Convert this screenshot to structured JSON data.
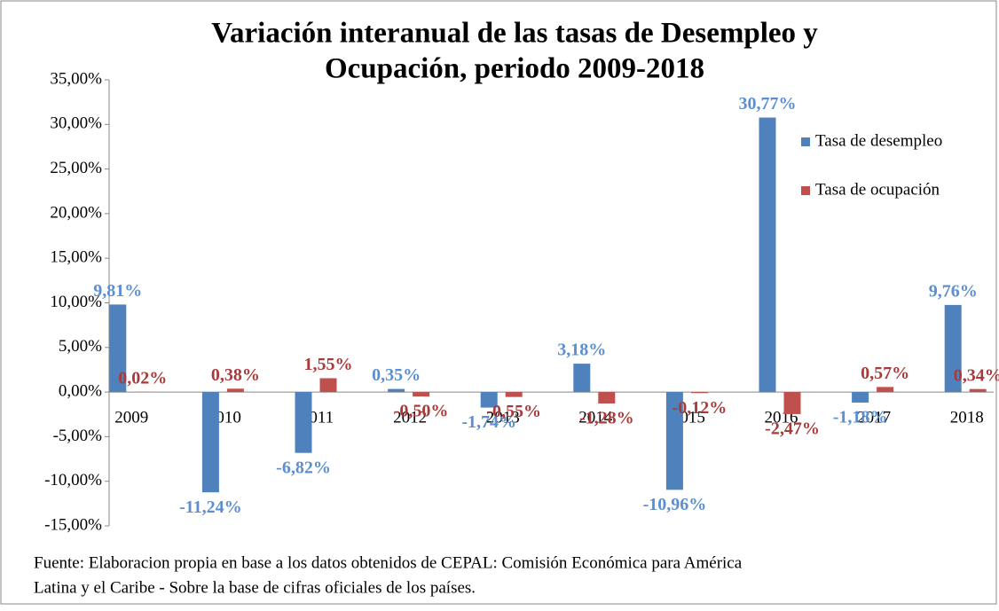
{
  "chart_data": {
    "type": "bar",
    "title": [
      "Variación  interanual de las tasas de Desempleo y",
      "Ocupación, periodo 2009-2018"
    ],
    "categories": [
      "2009",
      "2010",
      "2011",
      "2012",
      "2013",
      "2014",
      "2015",
      "2016",
      "2017",
      "2018"
    ],
    "series": [
      {
        "name": "Tasa de desempleo",
        "color": "#4f81bd",
        "label_color": "#5b8fd0",
        "values": [
          9.81,
          -11.24,
          -6.82,
          0.35,
          -1.74,
          3.18,
          -10.96,
          30.77,
          -1.18,
          9.76
        ],
        "value_labels": [
          "9,81%",
          "-11,24%",
          "-6,82%",
          "0,35%",
          "-1,74%",
          "3,18%",
          "-10,96%",
          "30,77%",
          "-1,18%",
          "9,76%"
        ]
      },
      {
        "name": "Tasa de ocupación",
        "color": "#c0504d",
        "label_color": "#a93a3a",
        "values": [
          0.02,
          0.38,
          1.55,
          -0.5,
          -0.55,
          -1.28,
          -0.12,
          -2.47,
          0.57,
          0.34
        ],
        "value_labels": [
          "0,02%",
          "0,38%",
          "1,55%",
          "-0,50%",
          "-0,55%",
          "-1,28%",
          "-0,12%",
          "-2,47%",
          "0,57%",
          "0,34%"
        ]
      }
    ],
    "ylim": [
      -15,
      35
    ],
    "yticks": [
      {
        "value": -15,
        "label": "-15,00%"
      },
      {
        "value": -10,
        "label": "-10,00%"
      },
      {
        "value": -5,
        "label": "-5,00%"
      },
      {
        "value": 0,
        "label": "0,00%"
      },
      {
        "value": 5,
        "label": "5,00%"
      },
      {
        "value": 10,
        "label": "10,00%"
      },
      {
        "value": 15,
        "label": "15,00%"
      },
      {
        "value": 20,
        "label": "20,00%"
      },
      {
        "value": 25,
        "label": "25,00%"
      },
      {
        "value": 30,
        "label": "30,00%"
      },
      {
        "value": 35,
        "label": "35,00%"
      }
    ],
    "grid": false,
    "legend": "upper right",
    "source": [
      "Fuente: Elaboracion propia  en base a los datos obtenidos de  CEPAL: Comisión Económica para América",
      "Latina  y el Caribe - Sobre la base de cifras oficiales de los países."
    ]
  }
}
